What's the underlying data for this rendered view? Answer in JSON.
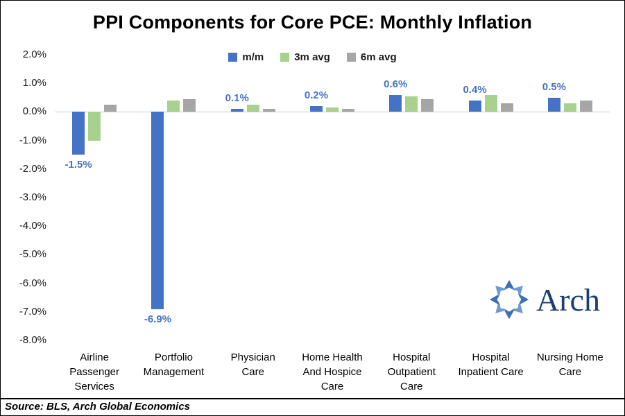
{
  "chart_data": {
    "type": "bar",
    "title": "PPI Components for Core PCE: Monthly Inflation",
    "xlabel": "",
    "ylabel": "",
    "ylim": [
      -8,
      2
    ],
    "ytick_step": 1,
    "yticks": [
      "2.0%",
      "1.0%",
      "0.0%",
      "-1.0%",
      "-2.0%",
      "-3.0%",
      "-4.0%",
      "-5.0%",
      "-6.0%",
      "-7.0%",
      "-8.0%"
    ],
    "grid": "zero-line-only",
    "legend_position": "top-center",
    "categories": [
      {
        "lines": [
          "Airline",
          "Passenger",
          "Services"
        ]
      },
      {
        "lines": [
          "Portfolio",
          "Management"
        ]
      },
      {
        "lines": [
          "Physician",
          "Care"
        ]
      },
      {
        "lines": [
          "Home Health",
          "And Hospice",
          "Care"
        ]
      },
      {
        "lines": [
          "Hospital",
          "Outpatient",
          "Care"
        ]
      },
      {
        "lines": [
          "Hospital",
          "Inpatient Care"
        ]
      },
      {
        "lines": [
          "Nursing Home",
          "Care"
        ]
      }
    ],
    "series": [
      {
        "name": "m/m",
        "color": "#4472C4",
        "values": [
          -1.5,
          -6.9,
          0.1,
          0.2,
          0.6,
          0.4,
          0.5
        ]
      },
      {
        "name": "3m avg",
        "color": "#A9D18E",
        "values": [
          -1.0,
          0.4,
          0.25,
          0.15,
          0.55,
          0.6,
          0.3
        ]
      },
      {
        "name": "6m avg",
        "color": "#A6A6A6",
        "values": [
          0.25,
          0.45,
          0.1,
          0.1,
          0.45,
          0.3,
          0.4
        ]
      }
    ],
    "data_labels": {
      "series": "m/m",
      "color": "#4472C4",
      "texts": [
        "-1.5%",
        "-6.9%",
        "0.1%",
        "0.2%",
        "0.6%",
        "0.4%",
        "0.5%"
      ]
    }
  },
  "logo": {
    "text": "Arch",
    "mark_color": "#3A6FB7",
    "mark_color_alt": "#6C9BD4"
  },
  "footer": {
    "source": "Source: BLS, Arch Global Economics"
  }
}
